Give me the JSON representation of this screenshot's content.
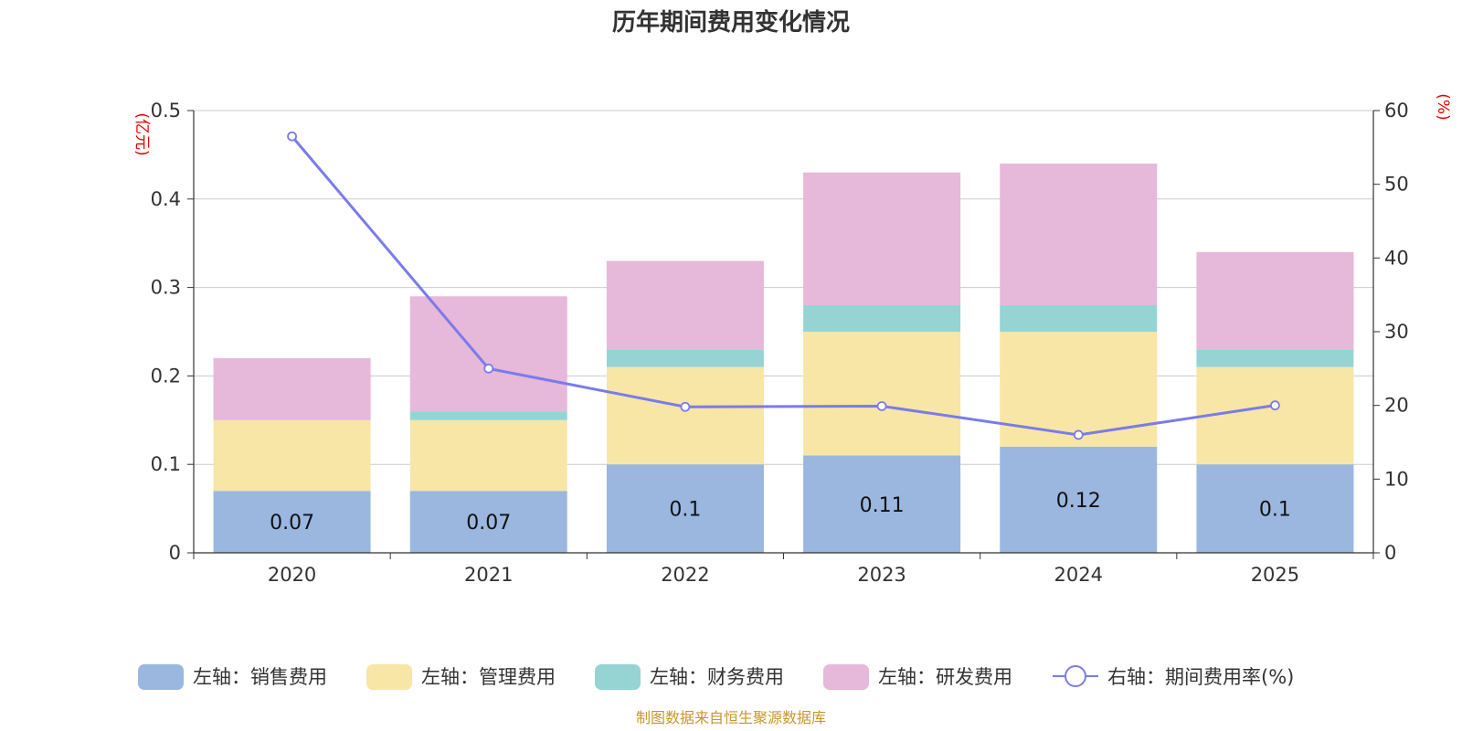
{
  "chart_data": {
    "type": "bar",
    "stacked": true,
    "title": "历年期间费用变化情况",
    "categories": [
      "2020",
      "2021",
      "2022",
      "2023",
      "2024",
      "2025"
    ],
    "left_axis": {
      "unit": "(亿元)",
      "ylim": [
        0,
        0.5
      ],
      "ticks": [
        "0",
        "0.1",
        "0.2",
        "0.3",
        "0.4",
        "0.5"
      ]
    },
    "right_axis": {
      "unit": "(%)",
      "ylim": [
        0,
        60
      ],
      "ticks": [
        "0",
        "10",
        "20",
        "30",
        "40",
        "50",
        "60"
      ]
    },
    "series": [
      {
        "name": "左轴：销售费用",
        "type": "bar",
        "axis": "left",
        "color": "#9bb7e0",
        "values": [
          0.07,
          0.07,
          0.1,
          0.11,
          0.12,
          0.1
        ],
        "labels": [
          "0.07",
          "0.07",
          "0.1",
          "0.11",
          "0.12",
          "0.1"
        ]
      },
      {
        "name": "左轴：管理费用",
        "type": "bar",
        "axis": "left",
        "color": "#f7e6a6",
        "values": [
          0.08,
          0.08,
          0.11,
          0.14,
          0.13,
          0.11
        ]
      },
      {
        "name": "左轴：财务费用",
        "type": "bar",
        "axis": "left",
        "color": "#96d4d4",
        "values": [
          0.0,
          0.01,
          0.02,
          0.03,
          0.03,
          0.02
        ]
      },
      {
        "name": "左轴：研发费用",
        "type": "bar",
        "axis": "left",
        "color": "#e6b8d9",
        "values": [
          0.07,
          0.13,
          0.1,
          0.15,
          0.16,
          0.11
        ]
      },
      {
        "name": "右轴：期间费用率(%)",
        "type": "line",
        "axis": "right",
        "color": "#7b7bea",
        "values": [
          56.5,
          25.0,
          19.8,
          19.9,
          16.0,
          20.0
        ]
      }
    ],
    "legend_position": "bottom",
    "grid": true
  },
  "source": "制图数据来自恒生聚源数据库"
}
